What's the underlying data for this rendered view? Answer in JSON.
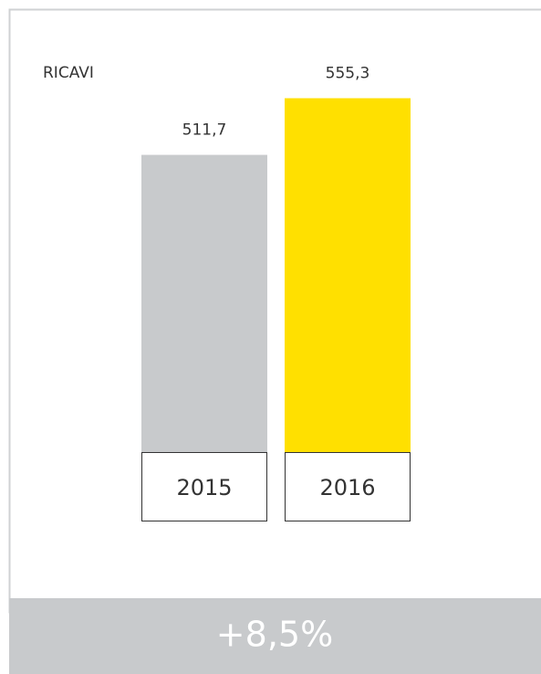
{
  "chart_data": {
    "type": "bar",
    "title": "RICAVI",
    "categories": [
      "2015",
      "2016"
    ],
    "values": [
      511.7,
      555.3
    ],
    "value_labels": [
      "511,7",
      "555,3"
    ],
    "colors": [
      "#c8cacc",
      "#ffe000"
    ],
    "ylim": [
      283,
      562
    ],
    "annotation": "+8,5%"
  }
}
